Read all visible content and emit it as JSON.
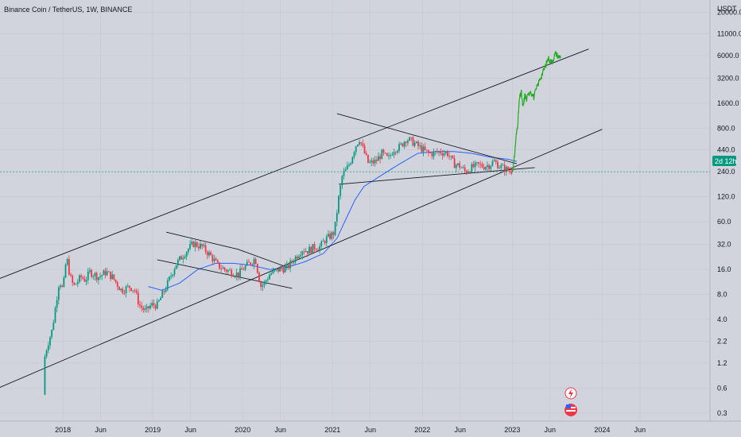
{
  "header": {
    "title": "Binance Coin / TetherUS, 1W, BINANCE",
    "currency": "USDT"
  },
  "price_badge": {
    "text": "2d 12h",
    "color": "#089981"
  },
  "colors": {
    "background": "#d1d4dc",
    "up_candle": "#089981",
    "down_candle": "#f23645",
    "ma_line": "#2962ff",
    "projection": "#22ab22",
    "trendline": "#131722"
  },
  "chart_data": {
    "type": "candlestick",
    "title": "Binance Coin / TetherUS, 1W, BINANCE",
    "y_scale": "log",
    "ylim": [
      0.24,
      28000
    ],
    "xlim": [
      2017.3,
      2025.2
    ],
    "y_ticks": [
      {
        "value": 20000,
        "label": "20000.0"
      },
      {
        "value": 11000,
        "label": "11000.0"
      },
      {
        "value": 6000,
        "label": "6000.0"
      },
      {
        "value": 3200,
        "label": "3200.0"
      },
      {
        "value": 1600,
        "label": "1600.0"
      },
      {
        "value": 800,
        "label": "800.0"
      },
      {
        "value": 440,
        "label": "440.0"
      },
      {
        "value": 240,
        "label": "240.0"
      },
      {
        "value": 120,
        "label": "120.0"
      },
      {
        "value": 60,
        "label": "60.0"
      },
      {
        "value": 32,
        "label": "32.0"
      },
      {
        "value": 16,
        "label": "16.0"
      },
      {
        "value": 8,
        "label": "8.0"
      },
      {
        "value": 4,
        "label": "4.0"
      },
      {
        "value": 2.2,
        "label": "2.2"
      },
      {
        "value": 1.2,
        "label": "1.2"
      },
      {
        "value": 0.6,
        "label": "0.6"
      },
      {
        "value": 0.3,
        "label": "0.3"
      }
    ],
    "x_ticks": [
      {
        "value": 2018.0,
        "label": "2018"
      },
      {
        "value": 2018.42,
        "label": "Jun"
      },
      {
        "value": 2019.0,
        "label": "2019"
      },
      {
        "value": 2019.42,
        "label": "Jun"
      },
      {
        "value": 2020.0,
        "label": "2020"
      },
      {
        "value": 2020.42,
        "label": "Jun"
      },
      {
        "value": 2021.0,
        "label": "2021"
      },
      {
        "value": 2021.42,
        "label": "Jun"
      },
      {
        "value": 2022.0,
        "label": "2022"
      },
      {
        "value": 2022.42,
        "label": "Jun"
      },
      {
        "value": 2023.0,
        "label": "2023"
      },
      {
        "value": 2023.42,
        "label": "Jun"
      },
      {
        "value": 2024.0,
        "label": "2024"
      },
      {
        "value": 2024.42,
        "label": "Jun"
      }
    ],
    "price_path": [
      [
        2017.78,
        0.5
      ],
      [
        2017.8,
        1.5
      ],
      [
        2017.84,
        2.2
      ],
      [
        2017.88,
        3
      ],
      [
        2017.92,
        6
      ],
      [
        2017.96,
        12
      ],
      [
        2018.0,
        9
      ],
      [
        2018.04,
        23
      ],
      [
        2018.08,
        13
      ],
      [
        2018.12,
        10
      ],
      [
        2018.2,
        13
      ],
      [
        2018.25,
        12
      ],
      [
        2018.3,
        15
      ],
      [
        2018.4,
        13
      ],
      [
        2018.48,
        15
      ],
      [
        2018.55,
        13
      ],
      [
        2018.65,
        9
      ],
      [
        2018.75,
        10
      ],
      [
        2018.8,
        9
      ],
      [
        2018.85,
        6
      ],
      [
        2018.92,
        5
      ],
      [
        2018.98,
        6
      ],
      [
        2019.05,
        6
      ],
      [
        2019.15,
        10
      ],
      [
        2019.25,
        18
      ],
      [
        2019.35,
        25
      ],
      [
        2019.45,
        33
      ],
      [
        2019.55,
        30
      ],
      [
        2019.65,
        23
      ],
      [
        2019.72,
        18
      ],
      [
        2019.8,
        16
      ],
      [
        2019.88,
        15
      ],
      [
        2019.95,
        14
      ],
      [
        2020.02,
        17
      ],
      [
        2020.1,
        20
      ],
      [
        2020.14,
        22
      ],
      [
        2020.2,
        10
      ],
      [
        2020.24,
        11
      ],
      [
        2020.3,
        14
      ],
      [
        2020.4,
        16
      ],
      [
        2020.5,
        17
      ],
      [
        2020.58,
        22
      ],
      [
        2020.66,
        28
      ],
      [
        2020.72,
        27
      ],
      [
        2020.8,
        30
      ],
      [
        2020.86,
        30
      ],
      [
        2020.92,
        37
      ],
      [
        2020.97,
        40
      ],
      [
        2021.02,
        45
      ],
      [
        2021.07,
        120
      ],
      [
        2021.11,
        220
      ],
      [
        2021.15,
        250
      ],
      [
        2021.2,
        320
      ],
      [
        2021.25,
        480
      ],
      [
        2021.3,
        600
      ],
      [
        2021.35,
        420
      ],
      [
        2021.4,
        300
      ],
      [
        2021.48,
        320
      ],
      [
        2021.55,
        400
      ],
      [
        2021.62,
        340
      ],
      [
        2021.68,
        450
      ],
      [
        2021.75,
        480
      ],
      [
        2021.82,
        600
      ],
      [
        2021.88,
        560
      ],
      [
        2021.94,
        500
      ],
      [
        2022.0,
        450
      ],
      [
        2022.06,
        400
      ],
      [
        2022.12,
        400
      ],
      [
        2022.2,
        420
      ],
      [
        2022.28,
        400
      ],
      [
        2022.35,
        300
      ],
      [
        2022.42,
        280
      ],
      [
        2022.48,
        240
      ],
      [
        2022.55,
        270
      ],
      [
        2022.62,
        290
      ],
      [
        2022.68,
        280
      ],
      [
        2022.74,
        290
      ],
      [
        2022.8,
        320
      ],
      [
        2022.86,
        280
      ],
      [
        2022.92,
        260
      ],
      [
        2022.97,
        245
      ],
      [
        2023.0,
        250
      ]
    ],
    "projection_path": [
      [
        2023.0,
        240
      ],
      [
        2023.02,
        320
      ],
      [
        2023.04,
        600
      ],
      [
        2023.06,
        900
      ],
      [
        2023.08,
        1800
      ],
      [
        2023.1,
        2200
      ],
      [
        2023.12,
        1400
      ],
      [
        2023.14,
        2000
      ],
      [
        2023.16,
        1800
      ],
      [
        2023.2,
        2300
      ],
      [
        2023.24,
        1900
      ],
      [
        2023.28,
        2600
      ],
      [
        2023.32,
        3400
      ],
      [
        2023.36,
        4200
      ],
      [
        2023.4,
        5600
      ],
      [
        2023.44,
        5000
      ],
      [
        2023.48,
        6400
      ],
      [
        2023.52,
        5800
      ],
      [
        2023.54,
        6000
      ]
    ],
    "ma_path": [
      [
        2018.95,
        10
      ],
      [
        2019.1,
        9
      ],
      [
        2019.3,
        11
      ],
      [
        2019.5,
        16
      ],
      [
        2019.7,
        19
      ],
      [
        2019.9,
        19
      ],
      [
        2020.1,
        18
      ],
      [
        2020.3,
        16
      ],
      [
        2020.5,
        17
      ],
      [
        2020.7,
        20
      ],
      [
        2020.9,
        25
      ],
      [
        2021.05,
        38
      ],
      [
        2021.15,
        65
      ],
      [
        2021.25,
        110
      ],
      [
        2021.35,
        160
      ],
      [
        2021.55,
        220
      ],
      [
        2021.75,
        300
      ],
      [
        2021.95,
        400
      ],
      [
        2022.15,
        420
      ],
      [
        2022.35,
        420
      ],
      [
        2022.55,
        400
      ],
      [
        2022.75,
        360
      ],
      [
        2022.95,
        340
      ],
      [
        2023.05,
        320
      ]
    ]
  }
}
